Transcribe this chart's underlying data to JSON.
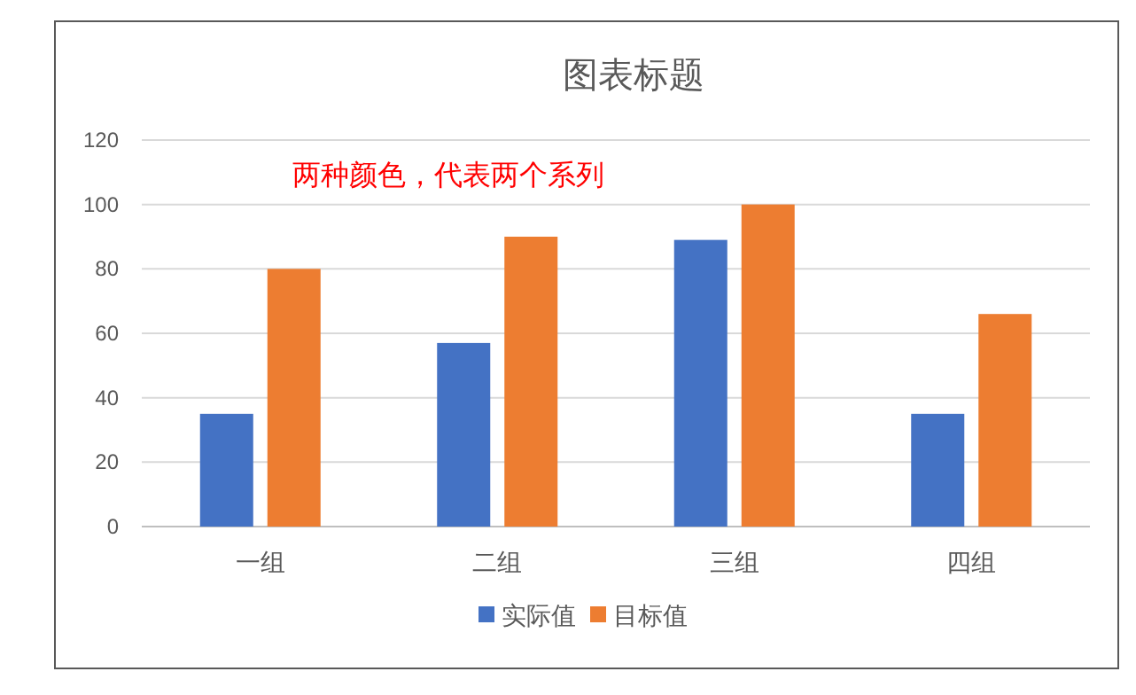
{
  "chart_data": {
    "type": "bar",
    "title": "图表标题",
    "categories": [
      "一组",
      "二组",
      "三组",
      "四组"
    ],
    "series": [
      {
        "name": "实际值",
        "color": "#4472c4",
        "values": [
          35,
          57,
          89,
          35
        ]
      },
      {
        "name": "目标值",
        "color": "#ed7d31",
        "values": [
          80,
          90,
          100,
          66
        ]
      }
    ],
    "ylim": [
      0,
      120
    ],
    "yticks": [
      0,
      20,
      40,
      60,
      80,
      100,
      120
    ],
    "grid": "y",
    "legend": "bottom",
    "annotations": [
      "两种颜色，代表两个系列"
    ]
  }
}
